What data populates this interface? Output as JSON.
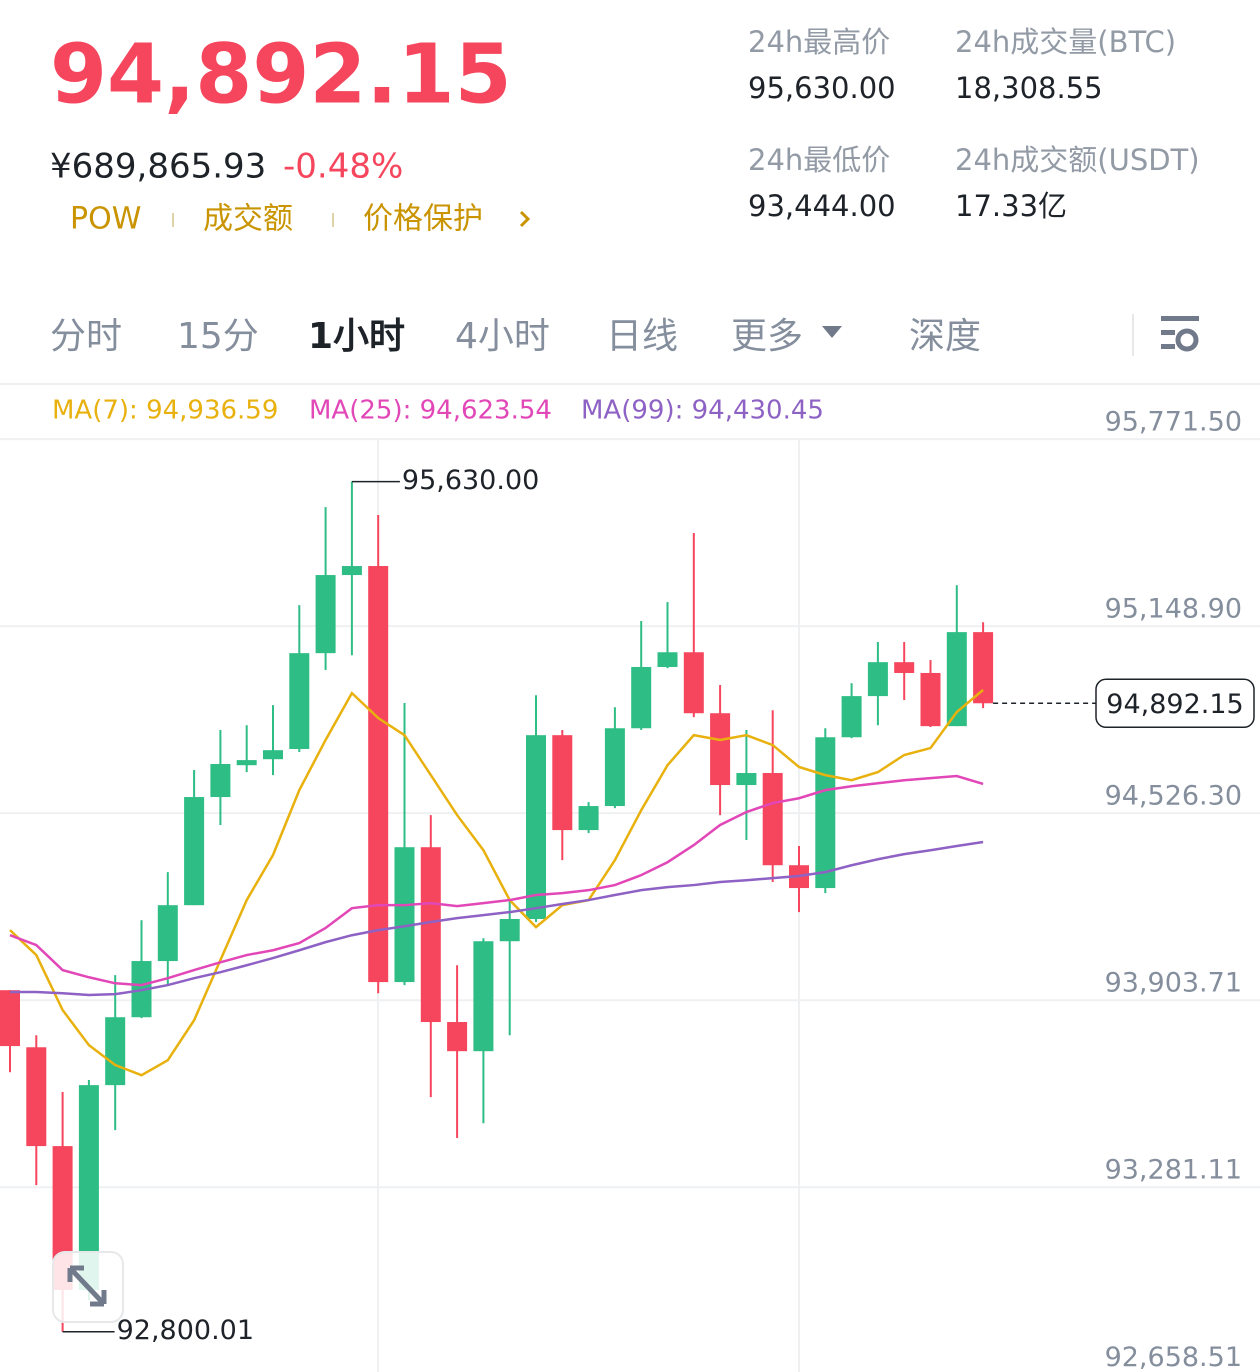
{
  "header": {
    "price": "94,892.15",
    "cny": "¥689,865.93",
    "change": "-0.48%",
    "tags": [
      "POW",
      "成交额",
      "价格保护"
    ]
  },
  "stats": [
    {
      "label": "24h最高价",
      "value": "95,630.00"
    },
    {
      "label": "24h成交量(BTC)",
      "value": "18,308.55"
    },
    {
      "label": "24h最低价",
      "value": "93,444.00"
    },
    {
      "label": "24h成交额(USDT)",
      "value": "17.33亿"
    }
  ],
  "tabs": [
    "分时",
    "15分",
    "1小时",
    "4小时",
    "日线",
    "更多",
    "深度"
  ],
  "selected_tab": "1小时",
  "chart_data": {
    "type": "candlestick",
    "up_color": "#2ebd85",
    "down_color": "#f6465d",
    "candles": {
      "open": [
        93937,
        93747,
        93418,
        92939,
        93621,
        93847,
        94034,
        94220,
        94580,
        94686,
        94706,
        94740,
        95059,
        95319,
        95349,
        93964,
        94413,
        93831,
        93734,
        94100,
        94174,
        94786,
        94470,
        94550,
        94809,
        95013,
        95062,
        94859,
        94620,
        94660,
        94353,
        94277,
        94779,
        94916,
        95029,
        94993,
        94816,
        95129
      ],
      "high": [
        93937,
        93787,
        93598,
        93638,
        93987,
        94170,
        94330,
        94670,
        94803,
        94819,
        94886,
        95219,
        95545,
        95630,
        95519,
        94893,
        94520,
        94020,
        94110,
        94237,
        94919,
        94803,
        94563,
        94879,
        95166,
        95229,
        95459,
        94953,
        94803,
        94869,
        94417,
        94809,
        94959,
        95096,
        95096,
        95036,
        95285,
        95162
      ],
      "low": [
        93664,
        93288,
        92800.01,
        92905,
        93471,
        93844,
        93954,
        94220,
        94487,
        94663,
        94653,
        94730,
        95003,
        95052,
        93927,
        93954,
        93581,
        93445,
        93494,
        93787,
        94164,
        94370,
        94460,
        94543,
        94803,
        95009,
        94846,
        94520,
        94437,
        94297,
        94197,
        94260,
        94776,
        94819,
        94903,
        94813,
        94816,
        94876
      ],
      "close": [
        93751,
        93418,
        92939,
        93621,
        93847,
        94034,
        94220,
        94580,
        94690,
        94703,
        94736,
        95059,
        95319,
        95349,
        93964,
        94413,
        93831,
        93734,
        94100,
        94174,
        94786,
        94470,
        94550,
        94809,
        95013,
        95062,
        94859,
        94620,
        94660,
        94353,
        94277,
        94779,
        94916,
        95029,
        94993,
        94816,
        95129,
        94892.15
      ]
    },
    "series": [
      {
        "name": "MA(7): 94,936.59",
        "color": "#e8b10e",
        "values": [
          94137,
          94054,
          93871,
          93754,
          93688,
          93654,
          93704,
          93837,
          94037,
          94237,
          94387,
          94603,
          94770,
          94926,
          94843,
          94786,
          94653,
          94520,
          94403,
          94237,
          94147,
          94220,
          94237,
          94370,
          94536,
          94686,
          94786,
          94770,
          94786,
          94753,
          94680,
          94653,
          94636,
          94663,
          94720,
          94743,
          94863,
          94936.59
        ]
      },
      {
        "name": "MA(25): 94,623.54",
        "color": "#e247b8",
        "values": [
          94120,
          94087,
          94004,
          93980,
          93960,
          93954,
          93977,
          94004,
          94030,
          94054,
          94070,
          94094,
          94144,
          94210,
          94220,
          94220,
          94227,
          94217,
          94227,
          94237,
          94254,
          94260,
          94270,
          94287,
          94320,
          94363,
          94420,
          94487,
          94530,
          94560,
          94576,
          94603,
          94616,
          94626,
          94636,
          94643,
          94650,
          94623.54
        ]
      },
      {
        "name": "MA(99): 94,430.45",
        "color": "#8e62c4",
        "values": [
          93931,
          93931,
          93927,
          93921,
          93924,
          93937,
          93954,
          93977,
          93997,
          94020,
          94044,
          94070,
          94097,
          94120,
          94137,
          94150,
          94164,
          94177,
          94187,
          94197,
          94210,
          94224,
          94237,
          94254,
          94270,
          94280,
          94287,
          94297,
          94303,
          94310,
          94317,
          94330,
          94353,
          94373,
          94390,
          94403,
          94417,
          94430.45
        ]
      }
    ],
    "ylim": [
      92666,
      95955
    ],
    "yticks": [
      {
        "value": 95771.5,
        "label": "95,771.50"
      },
      {
        "value": 95148.9,
        "label": "95,148.90"
      },
      {
        "value": 94526.3,
        "label": "94,526.30"
      },
      {
        "value": 93903.71,
        "label": "93,903.71"
      },
      {
        "value": 93281.11,
        "label": "93,281.11"
      },
      {
        "value": 92658.51,
        "label": "92,658.51"
      }
    ],
    "grid": true,
    "high_marker": {
      "value": 95630,
      "label": "95,630.00"
    },
    "low_marker": {
      "value": 92800.01,
      "label": "92,800.01"
    },
    "last_price": {
      "value": 94892.15,
      "label": "94,892.15"
    }
  }
}
